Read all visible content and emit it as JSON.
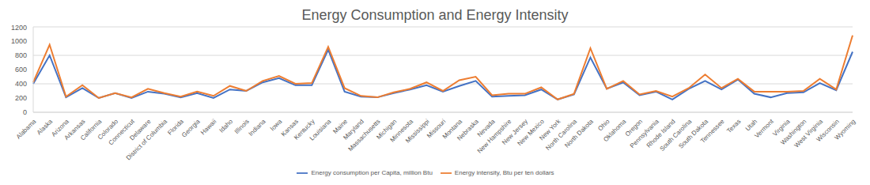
{
  "chart_data": {
    "type": "line",
    "title": "Energy Consumption and Energy Intensity",
    "categories": [
      "Alabama",
      "Alaska",
      "Arizona",
      "Arkansas",
      "California",
      "Colorado",
      "Connecticut",
      "Delaware",
      "District of Columbia",
      "Florida",
      "Georgia",
      "Hawaii",
      "Idaho",
      "Illinois",
      "Indiana",
      "Iowa",
      "Kansas",
      "Kentucky",
      "Louisiana",
      "Maine",
      "Maryland",
      "Massachusetts",
      "Michigan",
      "Minnesota",
      "Mississippi",
      "Missouri",
      "Montana",
      "Nebraska",
      "Nevada",
      "New Hampshire",
      "New Jersey",
      "New Mexico",
      "New York",
      "North Carolina",
      "North Dakota",
      "Ohio",
      "Oklahoma",
      "Oregon",
      "Pennsylvania",
      "Rhode Island",
      "South Carolina",
      "South Dakota",
      "Tennessee",
      "Texas",
      "Utah",
      "Vermont",
      "Virginia",
      "Washington",
      "West Virginia",
      "Wisconsin",
      "Wyoming"
    ],
    "series": [
      {
        "name": "Energy consumption per Capita, million Btu",
        "color": "#4472c4",
        "values": [
          400,
          800,
          210,
          340,
          200,
          270,
          200,
          290,
          260,
          210,
          270,
          200,
          320,
          300,
          420,
          480,
          380,
          380,
          880,
          290,
          220,
          210,
          270,
          320,
          380,
          290,
          370,
          440,
          220,
          230,
          240,
          320,
          180,
          250,
          770,
          330,
          420,
          240,
          290,
          180,
          330,
          440,
          320,
          460,
          260,
          210,
          270,
          280,
          410,
          310,
          850
        ]
      },
      {
        "name": "Energy intensity, Btu per ten dollars",
        "color": "#ed7d31",
        "values": [
          420,
          950,
          220,
          380,
          200,
          270,
          210,
          330,
          270,
          220,
          290,
          230,
          370,
          300,
          440,
          510,
          400,
          410,
          920,
          340,
          230,
          210,
          280,
          330,
          420,
          300,
          450,
          500,
          240,
          260,
          260,
          350,
          180,
          260,
          900,
          330,
          440,
          250,
          300,
          220,
          340,
          530,
          340,
          470,
          290,
          290,
          290,
          300,
          470,
          320,
          1080
        ]
      }
    ],
    "ylim": [
      0,
      1200
    ],
    "yticks": [
      0,
      200,
      400,
      600,
      800,
      1000,
      1200
    ],
    "grid": true,
    "legend": "bottom"
  }
}
